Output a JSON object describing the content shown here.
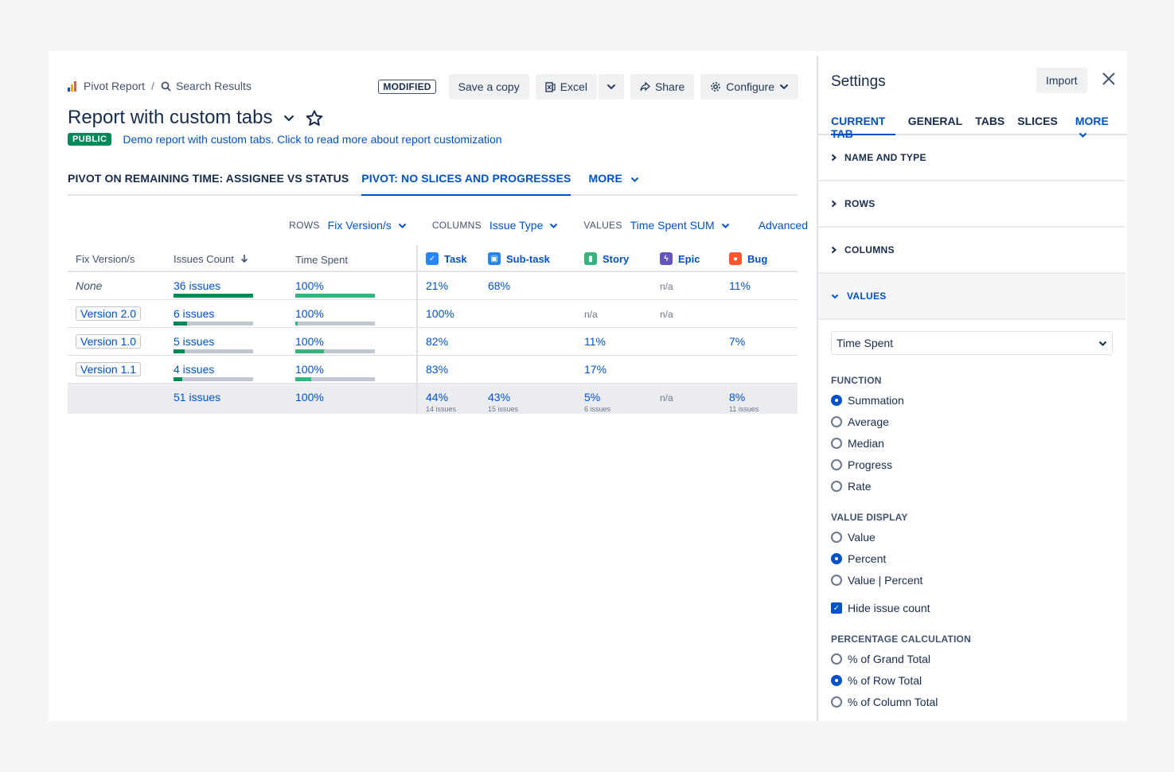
{
  "breadcrumb": {
    "root": "Pivot Report",
    "separator": "/",
    "current": "Search Results"
  },
  "toolbar": {
    "status": "MODIFIED",
    "save_copy": "Save a copy",
    "excel": "Excel",
    "share": "Share",
    "configure": "Configure"
  },
  "report": {
    "title": "Report with custom tabs",
    "visibility": "PUBLIC",
    "description": "Demo report with custom tabs. Click to read more about report customization"
  },
  "tabs": {
    "items": [
      "PIVOT ON REMAINING TIME: ASSIGNEE VS STATUS",
      "PIVOT: NO SLICES AND PROGRESSES"
    ],
    "active_index": 1,
    "more": "MORE"
  },
  "controls": {
    "rows_label": "ROWS",
    "rows_value": "Fix Version/s",
    "columns_label": "COLUMNS",
    "columns_value": "Issue Type",
    "values_label": "VALUES",
    "values_value": "Time Spent SUM",
    "advanced": "Advanced"
  },
  "table": {
    "headers": {
      "fix_version": "Fix Version/s",
      "issues_count": "Issues Count",
      "time_spent": "Time Spent"
    },
    "issue_types": [
      {
        "name": "Task",
        "color": "#2684ff"
      },
      {
        "name": "Sub-task",
        "color": "#2684ff"
      },
      {
        "name": "Story",
        "color": "#36b37e"
      },
      {
        "name": "Epic",
        "color": "#6554c0"
      },
      {
        "name": "Bug",
        "color": "#ff5630"
      }
    ],
    "rows": [
      {
        "version": "None",
        "is_none": true,
        "issues": "36 issues",
        "time": "100%",
        "task": "21%",
        "subtask": "68%",
        "story": "",
        "epic": "n/a",
        "bug": "11%",
        "issues_fill": 1.0,
        "time_fill": 1.0
      },
      {
        "version": "Version 2.0",
        "is_none": false,
        "issues": "6 issues",
        "time": "100%",
        "task": "100%",
        "subtask": "",
        "story": "n/a",
        "epic": "n/a",
        "bug": "",
        "issues_fill": 0.17,
        "time_fill": 0.03
      },
      {
        "version": "Version 1.0",
        "is_none": false,
        "issues": "5 issues",
        "time": "100%",
        "task": "82%",
        "subtask": "",
        "story": "11%",
        "epic": "",
        "bug": "7%",
        "issues_fill": 0.14,
        "time_fill": 0.36
      },
      {
        "version": "Version 1.1",
        "is_none": false,
        "issues": "4 issues",
        "time": "100%",
        "task": "83%",
        "subtask": "",
        "story": "17%",
        "epic": "",
        "bug": "",
        "issues_fill": 0.11,
        "time_fill": 0.2
      }
    ],
    "total": {
      "issues": "51 issues",
      "time": "100%",
      "task": "44%",
      "task_sub": "14 issues",
      "subtask": "43%",
      "subtask_sub": "15 issues",
      "story": "5%",
      "story_sub": "6 issues",
      "epic": "n/a",
      "bug": "8%",
      "bug_sub": "11 issues"
    }
  },
  "settings": {
    "title": "Settings",
    "import": "Import",
    "tabs": [
      "CURRENT TAB",
      "GENERAL",
      "TABS",
      "SLICES"
    ],
    "more": "MORE",
    "sections": [
      "NAME AND TYPE",
      "ROWS",
      "COLUMNS",
      "VALUES"
    ],
    "value_field": "Time Spent",
    "function_label": "FUNCTION",
    "functions": [
      "Summation",
      "Average",
      "Median",
      "Progress",
      "Rate"
    ],
    "function_selected": "Summation",
    "display_label": "VALUE DISPLAY",
    "displays": [
      "Value",
      "Percent",
      "Value | Percent"
    ],
    "display_selected": "Percent",
    "hide_issue_count": "Hide issue count",
    "percentage_label": "PERCENTAGE CALCULATION",
    "percentages": [
      "% of Grand Total",
      "% of Row Total",
      "% of Column Total"
    ],
    "percentage_selected": "% of Row Total"
  },
  "colors": {
    "accent": "#0052cc",
    "bar_dark": "#00875a",
    "bar_light": "#36b37e",
    "bar_track": "#c1c7d0"
  }
}
